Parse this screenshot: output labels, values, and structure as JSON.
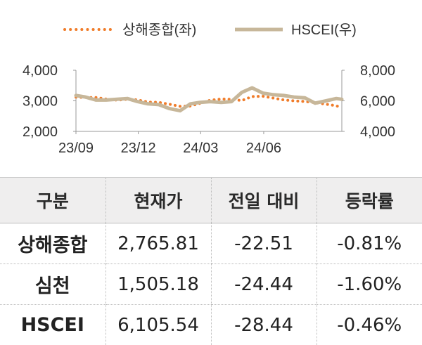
{
  "chart_data": {
    "type": "line",
    "title": "",
    "legend": {
      "position": "top-center"
    },
    "x_ticks": [
      "23/09",
      "23/12",
      "24/03",
      "24/06"
    ],
    "y_left": {
      "ticks": [
        "2,000",
        "3,000",
        "4,000"
      ],
      "range": [
        2000,
        4000
      ]
    },
    "y_right": {
      "ticks": [
        "4,000",
        "6,000",
        "8,000"
      ],
      "range": [
        4000,
        8000
      ]
    },
    "series": [
      {
        "name": "상해종합(좌)",
        "axis": "left",
        "style": "dotted",
        "color": "#f07c2a",
        "x": [
          "2023-09-01",
          "2023-09-15",
          "2023-09-30",
          "2023-10-15",
          "2023-10-31",
          "2023-11-15",
          "2023-11-30",
          "2023-12-15",
          "2023-12-31",
          "2024-01-15",
          "2024-01-31",
          "2024-02-15",
          "2024-02-29",
          "2024-03-15",
          "2024-03-31",
          "2024-04-15",
          "2024-04-30",
          "2024-05-15",
          "2024-05-31",
          "2024-06-15",
          "2024-06-30",
          "2024-07-15",
          "2024-07-31",
          "2024-08-15",
          "2024-08-31",
          "2024-09-15",
          "2024-09-23"
        ],
        "values": [
          3120,
          3110,
          3110,
          3060,
          3020,
          3050,
          3030,
          2960,
          2950,
          2890,
          2820,
          2830,
          2920,
          3020,
          3060,
          3050,
          3010,
          3140,
          3150,
          3090,
          3030,
          3000,
          2980,
          2940,
          2890,
          2840,
          2770
        ]
      },
      {
        "name": "HSCEI(우)",
        "axis": "right",
        "style": "solid",
        "color": "#c7b79a",
        "x": [
          "2023-09-01",
          "2023-09-15",
          "2023-09-30",
          "2023-10-15",
          "2023-10-31",
          "2023-11-15",
          "2023-11-30",
          "2023-12-15",
          "2023-12-31",
          "2024-01-15",
          "2024-01-31",
          "2024-02-15",
          "2024-02-29",
          "2024-03-15",
          "2024-03-31",
          "2024-04-15",
          "2024-04-30",
          "2024-05-15",
          "2024-05-31",
          "2024-06-15",
          "2024-06-30",
          "2024-07-15",
          "2024-07-31",
          "2024-08-15",
          "2024-08-31",
          "2024-09-15",
          "2024-09-23"
        ],
        "values": [
          6350,
          6250,
          6050,
          6050,
          6100,
          6150,
          5950,
          5800,
          5750,
          5500,
          5350,
          5800,
          5900,
          5950,
          5900,
          5950,
          6550,
          6850,
          6500,
          6400,
          6350,
          6250,
          6200,
          5850,
          6000,
          6150,
          6100
        ]
      }
    ]
  },
  "table": {
    "headers": [
      "구분",
      "현재가",
      "전일 대비",
      "등락률"
    ],
    "rows": [
      [
        "상해종합",
        "2,765.81",
        "-22.51",
        "-0.81%"
      ],
      [
        "심천",
        "1,505.18",
        "-24.44",
        "-1.60%"
      ],
      [
        "HSCEI",
        "6,105.54",
        "-28.44",
        "-0.46%"
      ]
    ]
  }
}
